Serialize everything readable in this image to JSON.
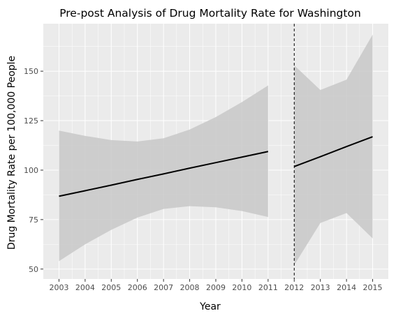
{
  "chart_data": {
    "type": "line",
    "title": "Pre-post Analysis of Drug Mortality Rate for Washington",
    "xlabel": "Year",
    "ylabel": "Drug Mortality Rate per 100,000 People",
    "x_ticks": [
      2003,
      2004,
      2005,
      2006,
      2007,
      2008,
      2009,
      2010,
      2011,
      2012,
      2013,
      2014,
      2015
    ],
    "y_ticks": [
      50,
      75,
      100,
      125,
      150
    ],
    "xlim": [
      2002.4,
      2015.6
    ],
    "ylim": [
      45,
      174
    ],
    "intervention_year": 2012,
    "grid": true,
    "colors": {
      "panel_background": "#ebebeb",
      "gridline": "#ffffff",
      "ribbon": "#c8c8c8",
      "line": "#000000"
    },
    "segments": [
      {
        "period": "pre",
        "x": [
          2003,
          2004,
          2005,
          2006,
          2007,
          2008,
          2009,
          2010,
          2011
        ],
        "fit": [
          86.8,
          89.6,
          92.4,
          95.3,
          98.1,
          101.0,
          103.8,
          106.6,
          109.4
        ],
        "lower": [
          54,
          62.5,
          69.8,
          76,
          80.4,
          81.8,
          81.2,
          79.3,
          76.3
        ],
        "upper": [
          120,
          117.3,
          115.2,
          114.5,
          116.1,
          120.5,
          126.8,
          134.4,
          142.8
        ]
      },
      {
        "period": "post",
        "x": [
          2012,
          2013,
          2014,
          2015
        ],
        "fit": [
          101.8,
          106.8,
          111.9,
          116.9
        ],
        "lower": [
          52,
          73.3,
          78.3,
          65.5
        ],
        "upper": [
          153,
          140.5,
          145.7,
          168.5
        ]
      }
    ]
  }
}
